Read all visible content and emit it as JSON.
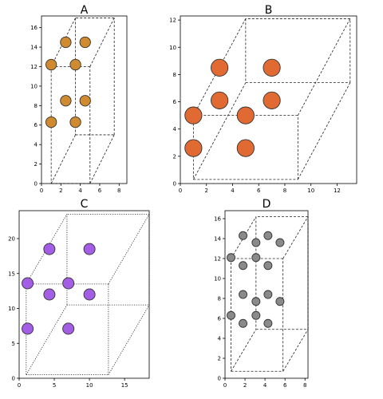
{
  "figure": {
    "bottom_caption": ""
  },
  "chart_data": [
    {
      "id": "A",
      "type": "scatter",
      "title": "A",
      "xlabel": "",
      "ylabel": "",
      "xlim": [
        0,
        8.8
      ],
      "ylim": [
        0,
        17.2
      ],
      "xticks": [
        0,
        2,
        4,
        6,
        8
      ],
      "yticks": [
        0,
        2,
        4,
        6,
        8,
        10,
        12,
        14,
        16
      ],
      "box": {
        "front": [
          1,
          0,
          5,
          12
        ],
        "back_offset": [
          2.5,
          5
        ],
        "style": "dashed"
      },
      "marker": {
        "fill": "#d08a2f",
        "edge": "#333333",
        "radius_units_x": 0.55
      },
      "points": [
        [
          2.5,
          14.5
        ],
        [
          4.5,
          14.5
        ],
        [
          1,
          12.2
        ],
        [
          3.5,
          12.2
        ],
        [
          2.5,
          8.5
        ],
        [
          4.5,
          8.5
        ],
        [
          1,
          6.3
        ],
        [
          3.5,
          6.3
        ]
      ]
    },
    {
      "id": "B",
      "type": "scatter",
      "title": "B",
      "xlabel": "",
      "ylabel": "",
      "xlim": [
        0,
        13.5
      ],
      "ylim": [
        0,
        12.3
      ],
      "xticks": [
        0,
        2,
        4,
        6,
        8,
        10,
        12
      ],
      "yticks": [
        0,
        2,
        4,
        6,
        8,
        10,
        12
      ],
      "box": {
        "front": [
          1,
          0.3,
          9,
          5
        ],
        "back_offset": [
          4,
          7.1
        ],
        "style": "dashed"
      },
      "marker": {
        "fill": "#e06a32",
        "edge": "#333333",
        "radius_units_x": 0.65
      },
      "points": [
        [
          3,
          8.5
        ],
        [
          7,
          8.5
        ],
        [
          3,
          6.1
        ],
        [
          7,
          6.1
        ],
        [
          1,
          5
        ],
        [
          5,
          5
        ],
        [
          1,
          2.6
        ],
        [
          5,
          2.6
        ]
      ]
    },
    {
      "id": "C",
      "type": "scatter",
      "title": "C",
      "xlabel": "",
      "ylabel": "",
      "xlim": [
        0,
        18.5
      ],
      "ylim": [
        0,
        24
      ],
      "xticks": [
        0,
        5,
        10,
        15
      ],
      "yticks": [
        0,
        5,
        10,
        15,
        20
      ],
      "box": {
        "front": [
          1,
          0.5,
          12.7,
          13.5
        ],
        "back_offset": [
          5.8,
          10
        ],
        "style": "dotted"
      },
      "marker": {
        "fill": "#a45ee6",
        "edge": "#333333",
        "radius_units_x": 0.8
      },
      "points": [
        [
          4.3,
          18.5
        ],
        [
          10,
          18.5
        ],
        [
          1.2,
          13.6
        ],
        [
          7,
          13.6
        ],
        [
          4.3,
          12
        ],
        [
          10,
          12
        ],
        [
          1.2,
          7.1
        ],
        [
          7,
          7.1
        ]
      ]
    },
    {
      "id": "D",
      "type": "scatter",
      "title": "D",
      "xlabel": "",
      "ylabel": "",
      "xlim": [
        0,
        8.3
      ],
      "ylim": [
        0,
        16.8
      ],
      "xticks": [
        0,
        2,
        4,
        6,
        8
      ],
      "yticks": [
        0,
        2,
        4,
        6,
        8,
        10,
        12,
        14,
        16
      ],
      "box": {
        "front": [
          0.6,
          0.7,
          5.8,
          12
        ],
        "back_offset": [
          2.5,
          4.2
        ],
        "style": "dashed"
      },
      "marker": {
        "fill": "#8a8a8a",
        "edge": "#333333",
        "radius_units_x": 0.4
      },
      "points": [
        [
          1.8,
          14.3
        ],
        [
          4.3,
          14.3
        ],
        [
          3.1,
          13.6
        ],
        [
          5.5,
          13.6
        ],
        [
          0.6,
          12.1
        ],
        [
          3.1,
          12.1
        ],
        [
          1.8,
          11.3
        ],
        [
          4.3,
          11.3
        ],
        [
          1.8,
          8.4
        ],
        [
          4.3,
          8.4
        ],
        [
          3.1,
          7.7
        ],
        [
          5.5,
          7.7
        ],
        [
          0.6,
          6.3
        ],
        [
          3.1,
          6.3
        ],
        [
          1.8,
          5.5
        ],
        [
          4.3,
          5.5
        ]
      ]
    }
  ]
}
